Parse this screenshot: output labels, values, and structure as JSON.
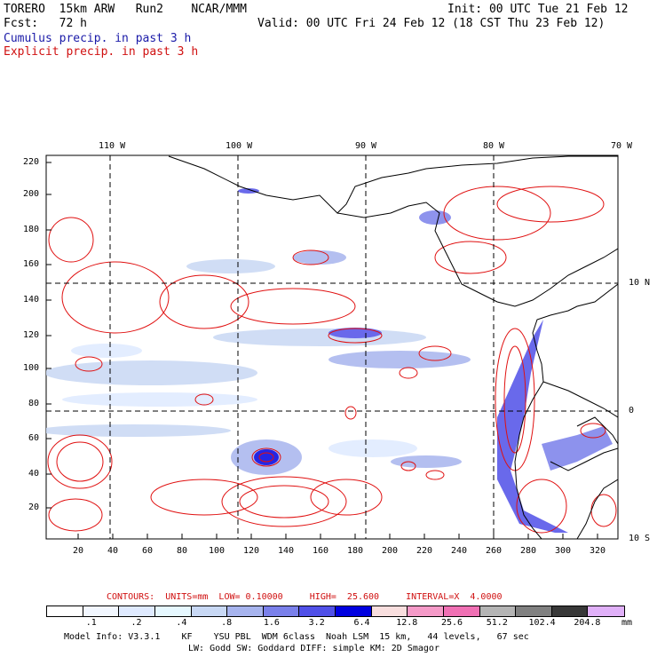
{
  "header": {
    "model": "TORERO  15km ARW   Run2    NCAR/MMM",
    "init": "Init: 00 UTC Tue 21 Feb 12",
    "fcst": "Fcst:   72 h",
    "valid": "Valid: 00 UTC Fri 24 Feb 12 (18 CST Thu 23 Feb 12)",
    "field1": "Cumulus precip. in past 3 h",
    "field2": "Explicit precip. in past 3 h"
  },
  "axes": {
    "top_lon": [
      "110 W",
      "100 W",
      "90 W",
      "80 W",
      "70 W"
    ],
    "left_y": [
      "220",
      "200",
      "180",
      "160",
      "140",
      "120",
      "100",
      "80",
      "60",
      "40",
      "20"
    ],
    "bottom_x": [
      "20",
      "40",
      "60",
      "80",
      "100",
      "120",
      "140",
      "160",
      "180",
      "200",
      "220",
      "240",
      "260",
      "280",
      "300",
      "320"
    ],
    "right_lat": [
      "10 N",
      "0",
      "10 S"
    ]
  },
  "contours_line": {
    "label": "CONTOURS:  UNITS=mm  LOW= 0.10000     HIGH=  25.600     INTERVAL=X  4.0000"
  },
  "legend": {
    "labels": [
      ".1",
      ".2",
      ".4",
      ".8",
      "1.6",
      "3.2",
      "6.4",
      "12.8",
      "25.6",
      "51.2",
      "102.4",
      "204.8"
    ],
    "unit": "mm",
    "colors": [
      "#ffffff",
      "#f2f7ff",
      "#dfeaff",
      "#e6f8ff",
      "#c8d8f4",
      "#a7b4ee",
      "#7a80ea",
      "#5050e8",
      "#0000e0",
      "#f8dede",
      "#f59ac8",
      "#f070b4",
      "#b4b4b4",
      "#808080",
      "#383838",
      "#e0b0f8"
    ]
  },
  "footer": {
    "line1": "Model Info: V3.3.1    KF    YSU PBL  WDM 6class  Noah LSM  15 km,   44 levels,   67 sec",
    "line2": "LW: Godd SW: Goddard DIFF: simple KM: 2D Smagor"
  }
}
